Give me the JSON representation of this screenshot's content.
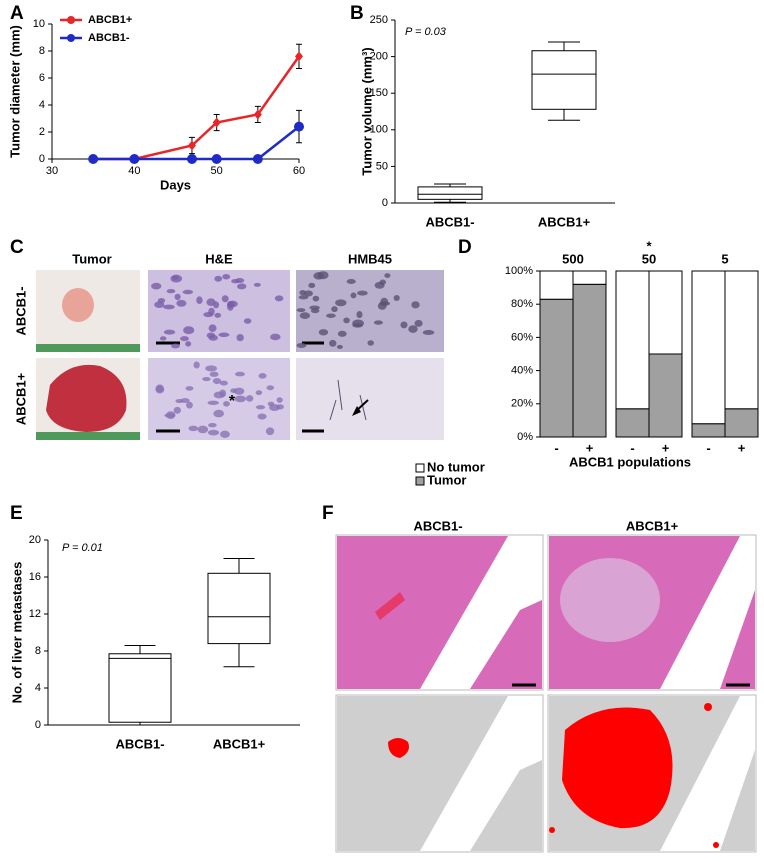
{
  "chart_data": [
    {
      "type": "line",
      "panel": "A",
      "xlabel": "Days",
      "ylabel": "Tumor diameter (mm)",
      "xlim": [
        30,
        60
      ],
      "xticks": [
        30,
        40,
        50,
        60
      ],
      "ylim": [
        0,
        10
      ],
      "yticks": [
        0,
        2,
        4,
        6,
        8,
        10
      ],
      "legend": "upper left",
      "series": [
        {
          "name": "ABCB1+",
          "color": "#e8262a",
          "marker": "diamond",
          "x": [
            35,
            40,
            47,
            50,
            55,
            60
          ],
          "values": [
            0,
            0,
            1.0,
            2.7,
            3.3,
            7.6
          ],
          "errors": [
            0,
            0,
            0.6,
            0.6,
            0.6,
            0.9
          ]
        },
        {
          "name": "ABCB1-",
          "color": "#1f2bc6",
          "marker": "circle",
          "x": [
            35,
            40,
            47,
            50,
            55,
            60
          ],
          "values": [
            0,
            0,
            0,
            0,
            0,
            2.4
          ],
          "errors": [
            0,
            0,
            0,
            0,
            0,
            1.2
          ]
        }
      ]
    },
    {
      "type": "box",
      "panel": "B",
      "ylabel": "Tumor volume (mm³)",
      "annotation": "P = 0.03",
      "categories": [
        "ABCB1-",
        "ABCB1+"
      ],
      "ylim": [
        0,
        250
      ],
      "yticks": [
        0,
        50,
        100,
        150,
        200,
        250
      ],
      "boxes": [
        {
          "min": 1,
          "q1": 5,
          "median": 12,
          "q3": 22,
          "max": 26
        },
        {
          "min": 113,
          "q1": 128,
          "median": 176,
          "q3": 208,
          "max": 220
        }
      ]
    },
    {
      "type": "bar",
      "stacked": true,
      "panel": "D",
      "xlabel": "ABCB1 populations",
      "legend": "bottom left",
      "groups": [
        "500",
        "50",
        "5"
      ],
      "group_annotations": [
        null,
        "*",
        null
      ],
      "categories": [
        "-",
        "+",
        "-",
        "+",
        "-",
        "+"
      ],
      "ylim": [
        0,
        100
      ],
      "yticks": [
        {
          "value": 0,
          "label": "0%"
        },
        {
          "value": 20,
          "label": "20%"
        },
        {
          "value": 40,
          "label": "40%"
        },
        {
          "value": 60,
          "label": "60%"
        },
        {
          "value": 80,
          "label": "80%"
        },
        {
          "value": 100,
          "label": "100%"
        }
      ],
      "series": [
        {
          "name": "No tumor",
          "color": "#ffffff",
          "values": [
            17,
            8,
            83,
            50,
            92,
            83
          ]
        },
        {
          "name": "Tumor",
          "color": "#a0a0a0",
          "values": [
            83,
            92,
            17,
            50,
            8,
            17
          ]
        }
      ]
    },
    {
      "type": "box",
      "panel": "E",
      "ylabel": "No. of liver metastases",
      "annotation": "P = 0.01",
      "categories": [
        "ABCB1-",
        "ABCB1+"
      ],
      "ylim": [
        0,
        20
      ],
      "yticks": [
        0,
        4,
        8,
        12,
        16,
        20
      ],
      "boxes": [
        {
          "min": 0,
          "q1": 0.3,
          "median": 7.2,
          "q3": 7.7,
          "max": 8.6
        },
        {
          "min": 6.3,
          "q1": 8.8,
          "median": 11.7,
          "q3": 16.4,
          "max": 18
        }
      ]
    }
  ],
  "figure_c": {
    "panel": "C",
    "columns": [
      "Tumor",
      "H&E",
      "HMB45"
    ],
    "rows": [
      "ABCB1-",
      "ABCB1+"
    ],
    "annotation": "*"
  },
  "figure_f": {
    "panel": "F",
    "columns": [
      "ABCB1-",
      "ABCB1+"
    ]
  }
}
